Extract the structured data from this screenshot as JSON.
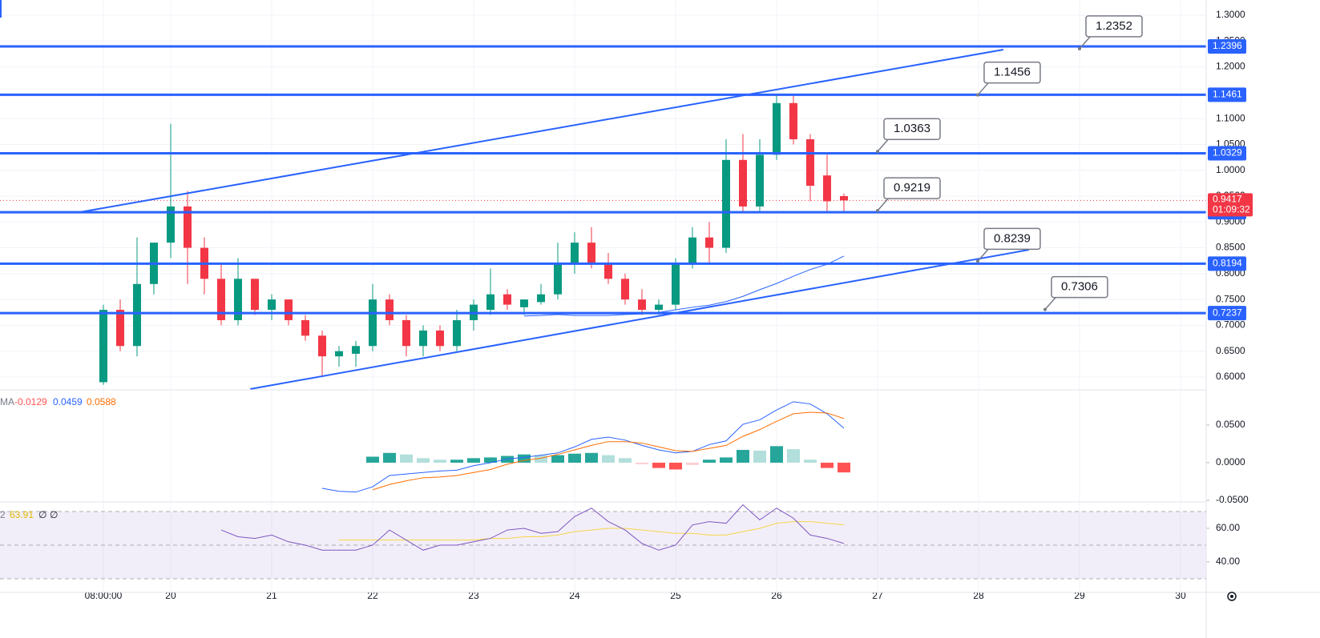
{
  "chart_data": [
    {
      "type": "candlestick",
      "x": [
        8,
        12,
        16,
        20,
        24,
        28,
        32,
        36,
        40,
        44,
        48,
        52,
        56,
        60,
        64,
        68,
        72,
        76,
        80,
        84,
        88,
        92,
        96,
        100,
        104,
        108,
        112,
        116,
        120,
        124,
        128,
        132,
        136,
        140,
        144,
        148,
        152,
        156,
        160,
        164,
        168,
        172,
        176,
        180,
        184
      ],
      "open": [
        0.59,
        0.73,
        0.66,
        0.78,
        0.86,
        0.93,
        0.85,
        0.79,
        0.71,
        0.79,
        0.73,
        0.75,
        0.71,
        0.68,
        0.64,
        0.645,
        0.66,
        0.75,
        0.71,
        0.66,
        0.69,
        0.66,
        0.71,
        0.73,
        0.76,
        0.735,
        0.745,
        0.76,
        0.82,
        0.86,
        0.82,
        0.79,
        0.75,
        0.73,
        0.74,
        0.82,
        0.87,
        0.85,
        1.02,
        0.93,
        1.03,
        1.13,
        1.06,
        0.99,
        0.95
      ],
      "high": [
        0.74,
        0.75,
        0.87,
        0.86,
        1.09,
        0.96,
        0.87,
        0.82,
        0.83,
        0.79,
        0.76,
        0.75,
        0.72,
        0.69,
        0.66,
        0.67,
        0.78,
        0.76,
        0.72,
        0.7,
        0.7,
        0.73,
        0.75,
        0.81,
        0.77,
        0.75,
        0.78,
        0.86,
        0.88,
        0.89,
        0.84,
        0.8,
        0.77,
        0.75,
        0.83,
        0.89,
        0.9,
        1.06,
        1.07,
        1.06,
        1.145,
        1.145,
        1.07,
        1.03,
        0.955
      ],
      "low": [
        0.585,
        0.65,
        0.64,
        0.76,
        0.83,
        0.78,
        0.76,
        0.7,
        0.7,
        0.72,
        0.71,
        0.7,
        0.67,
        0.6,
        0.62,
        0.62,
        0.65,
        0.7,
        0.64,
        0.64,
        0.65,
        0.65,
        0.69,
        0.72,
        0.73,
        0.72,
        0.74,
        0.75,
        0.8,
        0.81,
        0.78,
        0.74,
        0.72,
        0.72,
        0.73,
        0.81,
        0.82,
        0.84,
        0.92,
        0.92,
        1.02,
        1.05,
        0.94,
        0.92,
        0.92
      ],
      "close": [
        0.73,
        0.66,
        0.78,
        0.86,
        0.93,
        0.85,
        0.79,
        0.71,
        0.79,
        0.73,
        0.75,
        0.71,
        0.68,
        0.64,
        0.65,
        0.66,
        0.75,
        0.71,
        0.66,
        0.69,
        0.66,
        0.71,
        0.74,
        0.76,
        0.74,
        0.75,
        0.76,
        0.82,
        0.86,
        0.82,
        0.79,
        0.75,
        0.73,
        0.74,
        0.82,
        0.87,
        0.85,
        1.02,
        0.93,
        1.03,
        1.13,
        1.06,
        0.97,
        0.94,
        0.9417
      ],
      "up_color": "#089981",
      "down_color": "#f23645",
      "ma": [
        null,
        null,
        null,
        null,
        null,
        null,
        null,
        null,
        null,
        null,
        null,
        null,
        null,
        null,
        null,
        null,
        null,
        null,
        null,
        null,
        null,
        null,
        null,
        null,
        null,
        0.718,
        0.719,
        0.721,
        0.719,
        0.719,
        0.719,
        0.721,
        0.722,
        0.725,
        0.73,
        0.735,
        0.739,
        0.746,
        0.756,
        0.769,
        0.781,
        0.795,
        0.808,
        0.818,
        0.834
      ],
      "ma_color": "#2962ff",
      "xlim": [
        -16.57,
        270.1
      ],
      "xticks": [
        {
          "value": 8,
          "label": "08:00:00"
        },
        {
          "value": 24,
          "label": "20"
        },
        {
          "value": 48,
          "label": "21"
        },
        {
          "value": 72,
          "label": "22"
        },
        {
          "value": 96,
          "label": "23"
        },
        {
          "value": 120,
          "label": "24"
        },
        {
          "value": 144,
          "label": "25"
        },
        {
          "value": 168,
          "label": "26"
        },
        {
          "value": 192,
          "label": "27"
        },
        {
          "value": 216,
          "label": "28"
        },
        {
          "value": 240,
          "label": "29"
        },
        {
          "value": 264,
          "label": "30"
        }
      ],
      "ylim": [
        0.5752,
        1.3294
      ],
      "yticks": [
        {
          "value": 0.6,
          "label": "0.6000"
        },
        {
          "value": 0.65,
          "label": "0.6500"
        },
        {
          "value": 0.7,
          "label": "0.7000"
        },
        {
          "value": 0.75,
          "label": "0.7500"
        },
        {
          "value": 0.8,
          "label": "0.8000"
        },
        {
          "value": 0.85,
          "label": "0.8500"
        },
        {
          "value": 0.9,
          "label": "0.9000"
        },
        {
          "value": 0.95,
          "label": "0.9500"
        },
        {
          "value": 1.0,
          "label": "1.0000"
        },
        {
          "value": 1.05,
          "label": "1.0500"
        },
        {
          "value": 1.1,
          "label": "1.1000"
        },
        {
          "value": 1.15,
          "label": "1.1500"
        },
        {
          "value": 1.2,
          "label": "1.2000"
        },
        {
          "value": 1.25,
          "label": "1.2500"
        },
        {
          "value": 1.3,
          "label": "1.3000"
        }
      ],
      "grid": true,
      "levels": [
        1.2396,
        1.1461,
        1.0329,
        0.9188,
        0.8194,
        0.7237
      ],
      "level_color": "#2962ff",
      "trendlines": [
        {
          "x": [
            2.48,
            221.9
          ],
          "y": [
            0.919,
            1.2334
          ]
        },
        {
          "x": [
            42.9,
            228
          ],
          "y": [
            0.5767,
            0.8462
          ]
        }
      ],
      "callouts": [
        {
          "x": 240,
          "value": 1.2352
        },
        {
          "x": 215.8,
          "value": 1.1456
        },
        {
          "x": 192,
          "value": 1.0363
        },
        {
          "x": 192,
          "value": 0.9219
        },
        {
          "x": 215.8,
          "value": 0.8239
        },
        {
          "x": 231.8,
          "value": 0.7306
        }
      ],
      "last": {
        "value": 0.9417,
        "countdown": "01:09:32",
        "color": "#f23645"
      }
    },
    {
      "type": "macd",
      "name": "MA",
      "macd": [
        null,
        null,
        null,
        null,
        null,
        null,
        null,
        null,
        null,
        null,
        null,
        null,
        null,
        -0.034,
        -0.038,
        -0.039,
        -0.032,
        -0.017,
        -0.015,
        -0.013,
        -0.011,
        -0.01,
        -0.004,
        0.0,
        0.005,
        0.007,
        0.01,
        0.013,
        0.021,
        0.031,
        0.034,
        0.03,
        0.023,
        0.017,
        0.013,
        0.015,
        0.024,
        0.029,
        0.051,
        0.057,
        0.07,
        0.081,
        0.078,
        0.065,
        0.0459
      ],
      "signal": [
        null,
        null,
        null,
        null,
        null,
        null,
        null,
        null,
        null,
        null,
        null,
        null,
        null,
        null,
        null,
        null,
        -0.036,
        -0.029,
        -0.024,
        -0.02,
        -0.019,
        -0.017,
        -0.013,
        -0.009,
        -0.002,
        0.003,
        0.006,
        0.011,
        0.017,
        0.023,
        0.028,
        0.028,
        0.026,
        0.021,
        0.016,
        0.015,
        0.019,
        0.023,
        0.035,
        0.044,
        0.055,
        0.065,
        0.067,
        0.066,
        0.0588
      ],
      "histogram": [
        null,
        null,
        null,
        null,
        null,
        null,
        null,
        null,
        null,
        null,
        null,
        null,
        null,
        null,
        null,
        null,
        0.008,
        0.013,
        0.011,
        0.006,
        0.004,
        0.004,
        0.006,
        0.007,
        0.009,
        0.011,
        0.01,
        0.01,
        0.012,
        0.013,
        0.01,
        0.006,
        -0.002,
        -0.007,
        -0.009,
        -0.003,
        0.004,
        0.007,
        0.017,
        0.016,
        0.022,
        0.018,
        0.004,
        -0.007,
        -0.0129
      ],
      "macd_color": "#2962ff",
      "signal_color": "#ff6d00",
      "hist_colors": {
        "up_strong": "#26a69a",
        "up_weak": "#b2dfdb",
        "down_strong": "#ff5252",
        "down_weak": "#ffcdd2"
      },
      "ylim": [
        -0.0521,
        0.0968
      ],
      "yticks": [
        {
          "value": 0.05,
          "label": "0.0500"
        },
        {
          "value": 0,
          "label": "0.0000"
        },
        {
          "value": -0.05,
          "label": "-0.0500"
        }
      ]
    },
    {
      "type": "rsi",
      "name": "2",
      "legend_value": 63.91,
      "legend_extra": [
        "∅",
        "∅"
      ],
      "rsi": [
        null,
        null,
        null,
        null,
        null,
        null,
        null,
        59,
        55,
        54,
        56,
        52,
        50,
        47,
        47,
        47,
        50,
        59,
        53,
        47,
        50,
        50,
        52,
        54,
        59,
        60,
        57,
        58,
        67,
        72,
        64,
        59,
        51,
        47,
        50,
        62,
        64,
        63,
        74,
        65,
        72,
        66,
        56,
        54,
        51
      ],
      "rsi_ma": [
        null,
        null,
        null,
        null,
        null,
        null,
        null,
        null,
        null,
        null,
        null,
        null,
        null,
        null,
        53,
        53,
        53,
        53,
        53,
        53,
        53,
        53,
        53,
        54,
        54,
        55,
        55,
        56,
        58,
        59,
        60,
        60,
        59,
        58,
        57,
        57,
        56,
        56,
        58,
        60,
        63,
        64,
        64,
        63,
        62
      ],
      "rsi_color": "#7e57c2",
      "ma_color": "#f7d548",
      "bands": [
        70,
        50,
        30
      ],
      "ylim": [
        21.9,
        75.7
      ],
      "yticks": [
        {
          "value": 60,
          "label": "60.00"
        },
        {
          "value": 40,
          "label": "40.00"
        }
      ]
    }
  ]
}
